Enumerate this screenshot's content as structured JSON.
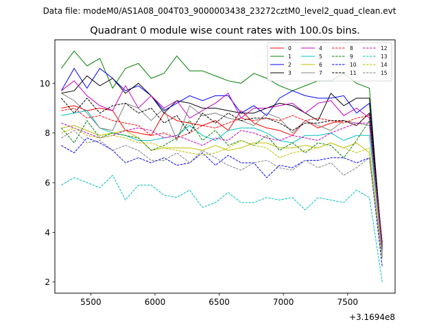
{
  "suptitle": "Data file: modeM0/AS1A08_004T03_9000003438_23272cztM0_level2_quad_clean.evt",
  "chart_data": {
    "type": "line",
    "title": "Quadrant 0 module wise count rates with 100.0s bins.",
    "xlabel": "",
    "ylabel": "",
    "offset_text": "+3.1694e8",
    "x_offset": 316940000,
    "xlim": [
      5220,
      7870
    ],
    "ylim": [
      1.55,
      11.75
    ],
    "x_ticks": [
      5500,
      6000,
      6500,
      7000,
      7500
    ],
    "y_ticks": [
      2,
      4,
      6,
      8,
      10
    ],
    "legend_position": "top-right",
    "x": [
      5270,
      5370,
      5470,
      5570,
      5670,
      5770,
      5870,
      5970,
      6070,
      6170,
      6270,
      6370,
      6470,
      6570,
      6670,
      6770,
      6870,
      6970,
      7070,
      7170,
      7270,
      7370,
      7470,
      7570,
      7670,
      7770
    ],
    "series": [
      {
        "name": "0",
        "color": "#ff0000",
        "dash": false,
        "values": [
          9.0,
          9.1,
          8.9,
          9.0,
          8.9,
          8.1,
          8.0,
          7.9,
          8.8,
          8.5,
          8.4,
          8.3,
          8.5,
          8.1,
          8.9,
          8.4,
          8.2,
          8.1,
          7.9,
          8.5,
          8.2,
          8.4,
          8.5,
          8.3,
          8.8,
          3.3
        ]
      },
      {
        "name": "1",
        "color": "#008000",
        "dash": false,
        "values": [
          10.6,
          11.3,
          10.7,
          11.0,
          9.8,
          10.6,
          10.8,
          10.2,
          10.4,
          11.1,
          10.5,
          10.5,
          10.3,
          10.1,
          10.0,
          10.4,
          10.2,
          9.9,
          9.7,
          9.9,
          10.1,
          10.1,
          10.4,
          10.0,
          9.8,
          3.0
        ]
      },
      {
        "name": "2",
        "color": "#0000ff",
        "dash": false,
        "values": [
          9.7,
          10.6,
          9.8,
          10.6,
          10.2,
          9.7,
          9.9,
          9.5,
          8.9,
          9.2,
          9.5,
          9.3,
          9.5,
          9.5,
          8.8,
          9.1,
          8.7,
          9.4,
          9.7,
          9.5,
          9.4,
          9.4,
          9.5,
          8.8,
          9.2,
          3.3
        ]
      },
      {
        "name": "3",
        "color": "#000000",
        "dash": false,
        "values": [
          9.6,
          9.7,
          10.3,
          9.9,
          10.2,
          9.6,
          10.0,
          9.5,
          8.8,
          9.3,
          9.2,
          9.0,
          9.0,
          8.9,
          8.8,
          8.8,
          9.0,
          9.2,
          9.1,
          8.8,
          8.5,
          9.6,
          9.1,
          9.4,
          9.4,
          3.4
        ]
      },
      {
        "name": "4",
        "color": "#bf00bf",
        "dash": false,
        "values": [
          9.7,
          10.1,
          9.5,
          9.1,
          8.9,
          9.9,
          9.0,
          9.5,
          9.0,
          9.3,
          8.6,
          8.9,
          9.2,
          9.6,
          8.6,
          9.0,
          9.0,
          9.1,
          9.2,
          8.8,
          9.2,
          9.3,
          8.7,
          9.0,
          8.6,
          3.6
        ]
      },
      {
        "name": "5",
        "color": "#00bfbf",
        "dash": false,
        "values": [
          8.7,
          8.8,
          8.9,
          8.2,
          8.0,
          7.9,
          7.7,
          7.7,
          7.8,
          7.9,
          8.3,
          7.9,
          7.7,
          8.1,
          8.2,
          8.2,
          8.0,
          7.7,
          7.6,
          7.9,
          7.9,
          8.0,
          7.7,
          7.9,
          7.9,
          3.2
        ]
      },
      {
        "name": "6",
        "color": "#bfbf00",
        "dash": false,
        "values": [
          8.2,
          8.3,
          8.1,
          7.9,
          8.0,
          8.1,
          7.8,
          7.3,
          7.4,
          7.4,
          7.4,
          7.3,
          7.5,
          7.3,
          7.4,
          7.6,
          7.6,
          7.4,
          7.4,
          7.5,
          7.4,
          7.6,
          7.4,
          7.6,
          7.2,
          3.0
        ]
      },
      {
        "name": "7",
        "color": "#808080",
        "dash": false,
        "values": [
          9.6,
          9.3,
          8.8,
          8.2,
          8.1,
          9.2,
          9.0,
          8.5,
          9.0,
          7.7,
          9.1,
          8.7,
          8.8,
          8.6,
          8.5,
          8.3,
          8.8,
          8.6,
          8.0,
          8.5,
          8.3,
          8.1,
          8.5,
          8.4,
          8.3,
          3.1
        ]
      },
      {
        "name": "8",
        "color": "#ff0000",
        "dash": true,
        "values": [
          8.9,
          9.0,
          8.6,
          8.7,
          8.5,
          8.4,
          8.3,
          7.9,
          8.0,
          7.8,
          8.0,
          8.3,
          8.2,
          8.4,
          8.6,
          8.5,
          8.6,
          8.5,
          8.7,
          8.5,
          8.6,
          8.5,
          8.4,
          8.6,
          8.7,
          3.5
        ]
      },
      {
        "name": "9",
        "color": "#008000",
        "dash": true,
        "values": [
          8.2,
          7.6,
          8.5,
          7.8,
          8.0,
          7.9,
          7.8,
          7.3,
          7.5,
          7.8,
          8.5,
          7.7,
          8.1,
          7.5,
          7.7,
          7.5,
          7.9,
          7.3,
          7.6,
          7.2,
          7.6,
          7.5,
          7.0,
          7.7,
          8.5,
          3.4
        ]
      },
      {
        "name": "10",
        "color": "#0000ff",
        "dash": true,
        "values": [
          7.5,
          7.2,
          7.8,
          7.6,
          7.3,
          6.8,
          7.0,
          6.8,
          7.0,
          6.7,
          6.8,
          7.2,
          6.7,
          7.1,
          6.8,
          6.8,
          6.2,
          6.7,
          6.6,
          6.9,
          6.9,
          7.0,
          7.0,
          6.8,
          7.0,
          2.6
        ]
      },
      {
        "name": "11",
        "color": "#000000",
        "dash": true,
        "values": [
          9.4,
          8.8,
          9.4,
          8.8,
          9.1,
          9.2,
          8.8,
          9.0,
          8.4,
          8.7,
          8.0,
          8.8,
          8.4,
          8.8,
          8.5,
          8.6,
          8.6,
          8.4,
          8.1,
          8.4,
          8.4,
          8.5,
          8.5,
          8.3,
          8.8,
          3.5
        ]
      },
      {
        "name": "12",
        "color": "#bf00bf",
        "dash": true,
        "values": [
          8.4,
          8.2,
          8.0,
          7.8,
          7.9,
          8.1,
          8.2,
          8.1,
          7.8,
          7.9,
          7.7,
          7.5,
          7.8,
          7.7,
          8.1,
          8.0,
          7.8,
          7.7,
          7.9,
          7.8,
          7.7,
          8.0,
          8.2,
          8.4,
          8.4,
          3.4
        ]
      },
      {
        "name": "13",
        "color": "#00bfbf",
        "dash": true,
        "values": [
          5.9,
          6.2,
          6.0,
          5.8,
          6.3,
          5.3,
          5.9,
          5.9,
          5.5,
          5.4,
          5.7,
          5.0,
          5.2,
          5.6,
          5.2,
          5.2,
          5.4,
          5.3,
          5.4,
          4.9,
          5.4,
          5.3,
          5.2,
          5.7,
          5.4,
          2.0
        ]
      },
      {
        "name": "14",
        "color": "#bfbf00",
        "dash": true,
        "values": [
          8.0,
          8.2,
          7.9,
          7.8,
          7.9,
          7.8,
          7.6,
          7.6,
          7.4,
          7.3,
          7.2,
          7.1,
          7.2,
          7.4,
          7.7,
          7.5,
          7.4,
          7.0,
          7.2,
          7.3,
          7.4,
          7.6,
          7.4,
          7.2,
          7.4,
          3.0
        ]
      },
      {
        "name": "15",
        "color": "#808080",
        "dash": true,
        "values": [
          7.8,
          8.1,
          7.6,
          7.7,
          7.3,
          7.5,
          7.3,
          6.9,
          6.9,
          7.2,
          6.8,
          7.3,
          7.0,
          6.7,
          6.5,
          6.8,
          6.9,
          6.6,
          6.5,
          6.9,
          6.6,
          6.8,
          6.3,
          6.6,
          7.0,
          2.9
        ]
      }
    ]
  }
}
